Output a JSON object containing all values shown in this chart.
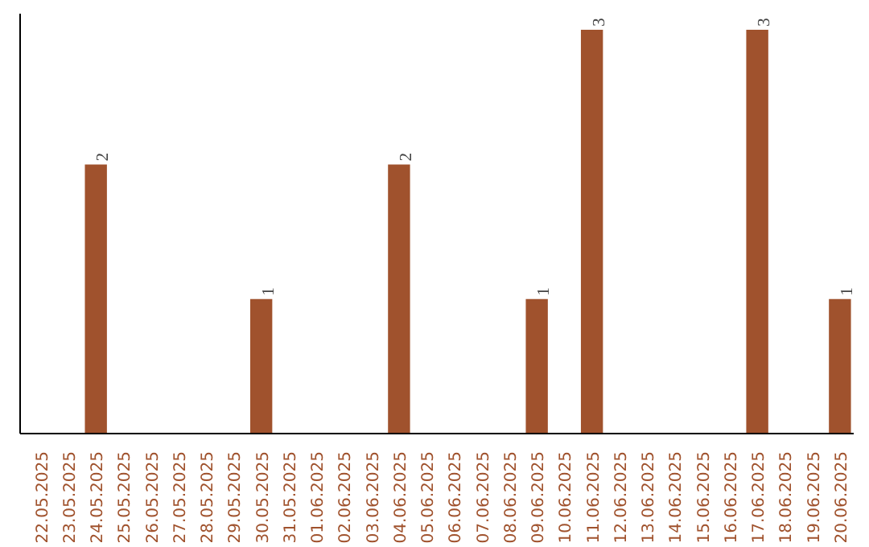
{
  "chart_data": {
    "type": "bar",
    "categories": [
      "22.05.2025",
      "23.05.2025",
      "24.05.2025",
      "25.05.2025",
      "26.05.2025",
      "27.05.2025",
      "28.05.2025",
      "29.05.2025",
      "30.05.2025",
      "31.05.2025",
      "01.06.2025",
      "02.06.2025",
      "03.06.2025",
      "04.06.2025",
      "05.06.2025",
      "06.06.2025",
      "07.06.2025",
      "08.06.2025",
      "09.06.2025",
      "10.06.2025",
      "11.06.2025",
      "12.06.2025",
      "13.06.2025",
      "14.06.2025",
      "15.06.2025",
      "16.06.2025",
      "17.06.2025",
      "18.06.2025",
      "19.06.2025",
      "20.06.2025"
    ],
    "values": [
      0,
      0,
      2,
      0,
      0,
      0,
      0,
      0,
      1,
      0,
      0,
      0,
      0,
      2,
      0,
      0,
      0,
      0,
      1,
      0,
      3,
      0,
      0,
      0,
      0,
      0,
      3,
      0,
      0,
      1
    ],
    "value_labels": [
      null,
      null,
      "2",
      null,
      null,
      null,
      null,
      null,
      "1",
      null,
      null,
      null,
      null,
      "2",
      null,
      null,
      null,
      null,
      "1",
      null,
      "3",
      null,
      null,
      null,
      null,
      null,
      "3",
      null,
      null,
      "1"
    ],
    "color": "#a0522d",
    "grid": false,
    "tick_labels": "x"
  }
}
